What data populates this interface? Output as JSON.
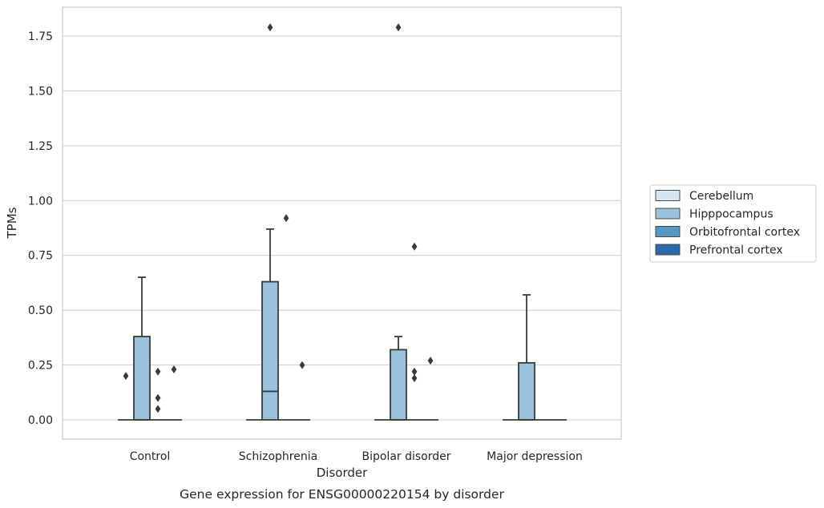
{
  "caption": "Gene expression for ENSG00000220154 by disorder",
  "chart_data": {
    "type": "box",
    "xlabel": "Disorder",
    "ylabel": "TPMs",
    "ylim": [
      -0.08,
      1.88
    ],
    "yticks": [
      "0.00",
      "0.25",
      "0.50",
      "0.75",
      "1.00",
      "1.25",
      "1.50",
      "1.75"
    ],
    "grid": "horizontal",
    "legend_position": "right",
    "categories": [
      "Control",
      "Schizophrenia",
      "Bipolar disorder",
      "Major depression"
    ],
    "series": [
      {
        "name": "Cerebellum",
        "color": "#d6e5f2"
      },
      {
        "name": "Hipppocampus",
        "color": "#9bc2dc"
      },
      {
        "name": "Orbitofrontal cortex",
        "color": "#5697c5"
      },
      {
        "name": "Prefrontal cortex",
        "color": "#2a6aaa"
      }
    ],
    "boxes": [
      {
        "category": "Control",
        "series": "Cerebellum",
        "q1": 0,
        "median": 0,
        "q3": 0,
        "whisker_low": 0,
        "whisker_high": 0,
        "outliers": [
          0.2
        ]
      },
      {
        "category": "Control",
        "series": "Hipppocampus",
        "q1": 0,
        "median": 0,
        "q3": 0.38,
        "whisker_low": 0,
        "whisker_high": 0.65,
        "outliers": []
      },
      {
        "category": "Control",
        "series": "Orbitofrontal cortex",
        "q1": 0,
        "median": 0,
        "q3": 0,
        "whisker_low": 0,
        "whisker_high": 0,
        "outliers": [
          0.22,
          0.1,
          0.05
        ]
      },
      {
        "category": "Control",
        "series": "Prefrontal cortex",
        "q1": 0,
        "median": 0,
        "q3": 0,
        "whisker_low": 0,
        "whisker_high": 0,
        "outliers": [
          0.23
        ]
      },
      {
        "category": "Schizophrenia",
        "series": "Cerebellum",
        "q1": 0,
        "median": 0,
        "q3": 0,
        "whisker_low": 0,
        "whisker_high": 0,
        "outliers": []
      },
      {
        "category": "Schizophrenia",
        "series": "Hipppocampus",
        "q1": 0,
        "median": 0.13,
        "q3": 0.63,
        "whisker_low": 0,
        "whisker_high": 0.87,
        "outliers": [
          1.79
        ]
      },
      {
        "category": "Schizophrenia",
        "series": "Orbitofrontal cortex",
        "q1": 0,
        "median": 0,
        "q3": 0,
        "whisker_low": 0,
        "whisker_high": 0,
        "outliers": [
          0.92
        ]
      },
      {
        "category": "Schizophrenia",
        "series": "Prefrontal cortex",
        "q1": 0,
        "median": 0,
        "q3": 0,
        "whisker_low": 0,
        "whisker_high": 0,
        "outliers": [
          0.25
        ]
      },
      {
        "category": "Bipolar disorder",
        "series": "Cerebellum",
        "q1": 0,
        "median": 0,
        "q3": 0,
        "whisker_low": 0,
        "whisker_high": 0,
        "outliers": []
      },
      {
        "category": "Bipolar disorder",
        "series": "Hipppocampus",
        "q1": 0,
        "median": 0,
        "q3": 0.32,
        "whisker_low": 0,
        "whisker_high": 0.38,
        "outliers": [
          1.79
        ]
      },
      {
        "category": "Bipolar disorder",
        "series": "Orbitofrontal cortex",
        "q1": 0,
        "median": 0,
        "q3": 0,
        "whisker_low": 0,
        "whisker_high": 0,
        "outliers": [
          0.79,
          0.22,
          0.19
        ]
      },
      {
        "category": "Bipolar disorder",
        "series": "Prefrontal cortex",
        "q1": 0,
        "median": 0,
        "q3": 0,
        "whisker_low": 0,
        "whisker_high": 0,
        "outliers": [
          0.27
        ]
      },
      {
        "category": "Major depression",
        "series": "Cerebellum",
        "q1": 0,
        "median": 0,
        "q3": 0,
        "whisker_low": 0,
        "whisker_high": 0,
        "outliers": []
      },
      {
        "category": "Major depression",
        "series": "Hipppocampus",
        "q1": 0,
        "median": 0,
        "q3": 0.26,
        "whisker_low": 0,
        "whisker_high": 0.57,
        "outliers": []
      },
      {
        "category": "Major depression",
        "series": "Orbitofrontal cortex",
        "q1": 0,
        "median": 0,
        "q3": 0,
        "whisker_low": 0,
        "whisker_high": 0,
        "outliers": []
      },
      {
        "category": "Major depression",
        "series": "Prefrontal cortex",
        "q1": 0,
        "median": 0,
        "q3": 0,
        "whisker_low": 0,
        "whisker_high": 0,
        "outliers": []
      }
    ]
  }
}
